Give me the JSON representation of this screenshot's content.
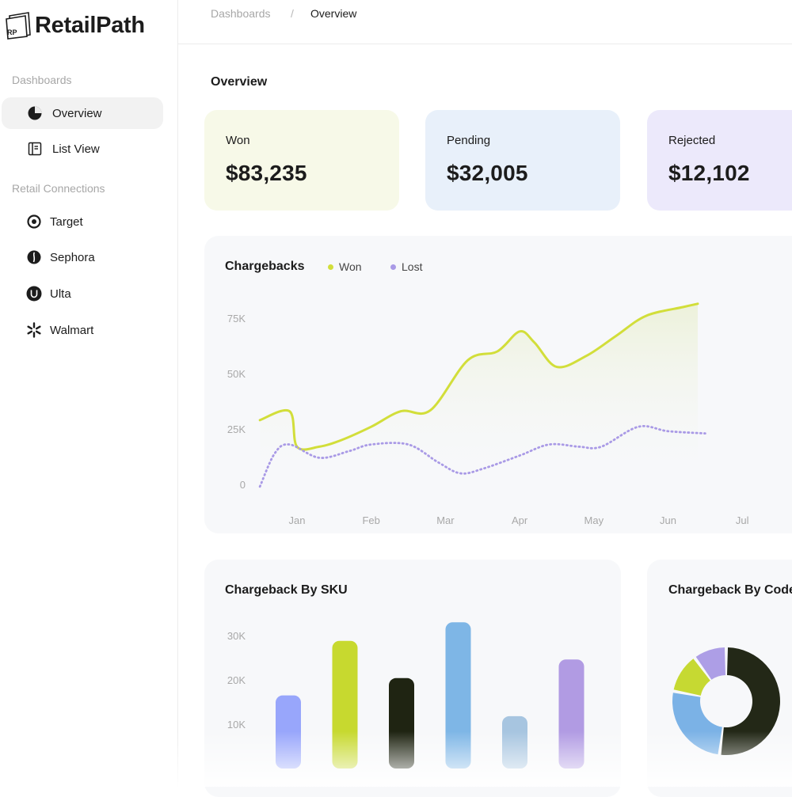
{
  "app": {
    "brand": "RetailPath",
    "logo_mark": "RP"
  },
  "breadcrumb": {
    "root": "Dashboards",
    "separator": "/",
    "current": "Overview"
  },
  "sidebar": {
    "sections": [
      {
        "title": "Dashboards",
        "items": [
          {
            "label": "Overview",
            "icon": "pie-chart-icon",
            "active": true
          },
          {
            "label": "List View",
            "icon": "list-view-icon",
            "active": false
          }
        ]
      },
      {
        "title": "Retail Connections",
        "items": [
          {
            "label": "Target",
            "icon": "target-logo-icon"
          },
          {
            "label": "Sephora",
            "icon": "sephora-logo-icon"
          },
          {
            "label": "Ulta",
            "icon": "ulta-logo-icon"
          },
          {
            "label": "Walmart",
            "icon": "walmart-spark-icon"
          }
        ]
      }
    ]
  },
  "page": {
    "title": "Overview"
  },
  "stats": [
    {
      "label": "Won",
      "value": "$83,235",
      "bg": "#f7f9e8"
    },
    {
      "label": "Pending",
      "value": "$32,005",
      "bg": "#e8f0fa"
    },
    {
      "label": "Rejected",
      "value": "$12,102",
      "bg": "#ece9fb"
    }
  ],
  "colors": {
    "won": "#d2de3a",
    "lost": "#a99ae6",
    "dark": "#1f2412"
  },
  "chargebacks_panel": {
    "title": "Chargebacks"
  },
  "sku_panel": {
    "title": "Chargeback By SKU"
  },
  "code_panel": {
    "title": "Chargeback By Code"
  },
  "chart_data": [
    {
      "type": "line",
      "title": "Chargebacks",
      "categories": [
        "Jan",
        "Feb",
        "Mar",
        "Apr",
        "May",
        "Jun",
        "Jul"
      ],
      "y_ticks": [
        "0",
        "25K",
        "50K",
        "75K"
      ],
      "ylim": [
        0,
        75000
      ],
      "grid": false,
      "legend": "top-left",
      "series": [
        {
          "name": "Won",
          "color": "#d2de3a",
          "style": "solid",
          "points": [
            [
              0.5,
              29000
            ],
            [
              0.9,
              33000
            ],
            [
              1.0,
              17000
            ],
            [
              1.3,
              17000
            ],
            [
              1.6,
              20000
            ],
            [
              2.0,
              26000
            ],
            [
              2.4,
              33000
            ],
            [
              2.8,
              33500
            ],
            [
              3.3,
              56000
            ],
            [
              3.7,
              60000
            ],
            [
              4.0,
              69000
            ],
            [
              4.2,
              64000
            ],
            [
              4.5,
              53000
            ],
            [
              4.9,
              58000
            ],
            [
              5.3,
              67000
            ],
            [
              5.7,
              76000
            ],
            [
              6.2,
              80000
            ],
            [
              6.4,
              81500
            ]
          ]
        },
        {
          "name": "Lost",
          "color": "#a99ae6",
          "style": "dotted",
          "points": [
            [
              0.5,
              -1000
            ],
            [
              0.7,
              14000
            ],
            [
              0.9,
              18000
            ],
            [
              1.3,
              12000
            ],
            [
              1.7,
              15000
            ],
            [
              2.0,
              18000
            ],
            [
              2.5,
              18000
            ],
            [
              2.9,
              10000
            ],
            [
              3.2,
              5000
            ],
            [
              3.5,
              7000
            ],
            [
              4.0,
              13000
            ],
            [
              4.4,
              18000
            ],
            [
              4.8,
              17000
            ],
            [
              5.1,
              17000
            ],
            [
              5.6,
              26000
            ],
            [
              6.0,
              24000
            ],
            [
              6.5,
              23000
            ]
          ]
        }
      ]
    },
    {
      "type": "bar",
      "title": "Chargeback By SKU",
      "y_ticks": [
        "10K",
        "20K",
        "30K"
      ],
      "ylim": [
        0,
        40000
      ],
      "values": [
        16500,
        28800,
        20400,
        33000,
        11800,
        24600
      ],
      "colors": [
        "#98a6fb",
        "#c7d92f",
        "#1f2412",
        "#7eb6e6",
        "#a7c5e0",
        "#b19be3"
      ]
    },
    {
      "type": "pie",
      "title": "Chargeback By Code",
      "donut": true,
      "values": [
        52,
        26,
        12,
        10
      ],
      "colors": [
        "#232817",
        "#7bb2e6",
        "#c6d932",
        "#ad9ee6"
      ]
    }
  ]
}
